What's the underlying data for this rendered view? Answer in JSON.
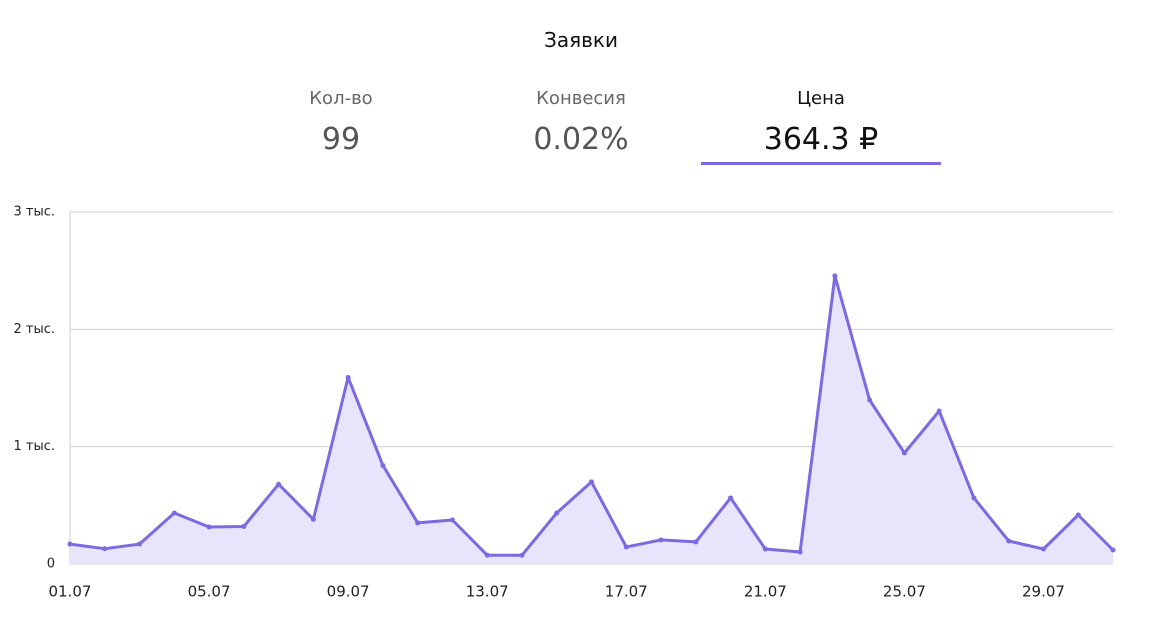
{
  "title": "Заявки",
  "stats": [
    {
      "label": "Кол-во",
      "value": "99",
      "active": false
    },
    {
      "label": "Конвесия",
      "value": "0.02%",
      "active": false
    },
    {
      "label": "Цена",
      "value": "364.3 ₽",
      "active": true
    }
  ],
  "chart_data": {
    "type": "area",
    "categories": [
      "01.07",
      null,
      null,
      null,
      "05.07",
      null,
      null,
      null,
      "09.07",
      null,
      null,
      null,
      "13.07",
      null,
      null,
      null,
      "17.07",
      null,
      null,
      null,
      "21.07",
      null,
      null,
      null,
      "25.07",
      null,
      null,
      null,
      "29.07",
      null,
      null
    ],
    "values": [
      170,
      130,
      170,
      435,
      315,
      320,
      680,
      380,
      1590,
      840,
      350,
      375,
      75,
      75,
      435,
      700,
      145,
      205,
      188,
      563,
      128,
      102,
      2455,
      1398,
      946,
      1304,
      563,
      196,
      128,
      418,
      119
    ],
    "color": "#7b6ae0",
    "fill_color": "#e7e4fb",
    "ylim": [
      0,
      3000
    ],
    "yticks": [
      0,
      {
        "value": 1000,
        "label": "1 тыс."
      },
      {
        "value": 2000,
        "label": "2 тыс."
      },
      {
        "value": 3000,
        "label": "3 тыс."
      }
    ],
    "grid": true
  }
}
